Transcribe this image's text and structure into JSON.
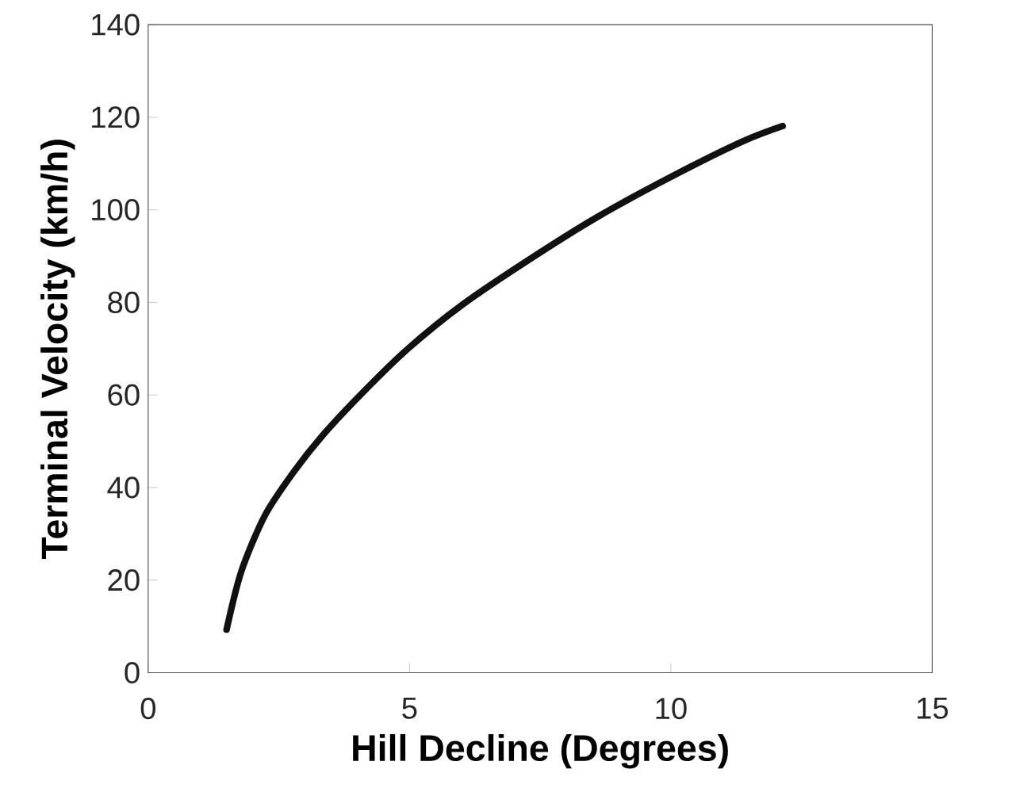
{
  "chart_data": {
    "type": "line",
    "xlabel": "Hill Decline (Degrees)",
    "ylabel": "Terminal Velocity (km/h)",
    "xlim": [
      0,
      15
    ],
    "xticks": [
      0,
      5,
      10,
      15
    ],
    "ylim": [
      0,
      140
    ],
    "yticks": [
      0,
      20,
      40,
      60,
      80,
      100,
      120,
      140
    ],
    "marker": "none",
    "line_style": "solid",
    "grid": false,
    "series": [
      {
        "color": "#111111",
        "x": [
          1.5,
          1.78,
          2.23,
          2.78,
          3.34,
          4.12,
          4.98,
          6.01,
          7.24,
          8.57,
          10.0,
          11.36,
          12.14
        ],
        "values": [
          9.3,
          21.8,
          33.9,
          43.3,
          51.3,
          60.7,
          70.1,
          79.5,
          88.9,
          98.3,
          107.1,
          114.7,
          118.1
        ]
      }
    ]
  }
}
